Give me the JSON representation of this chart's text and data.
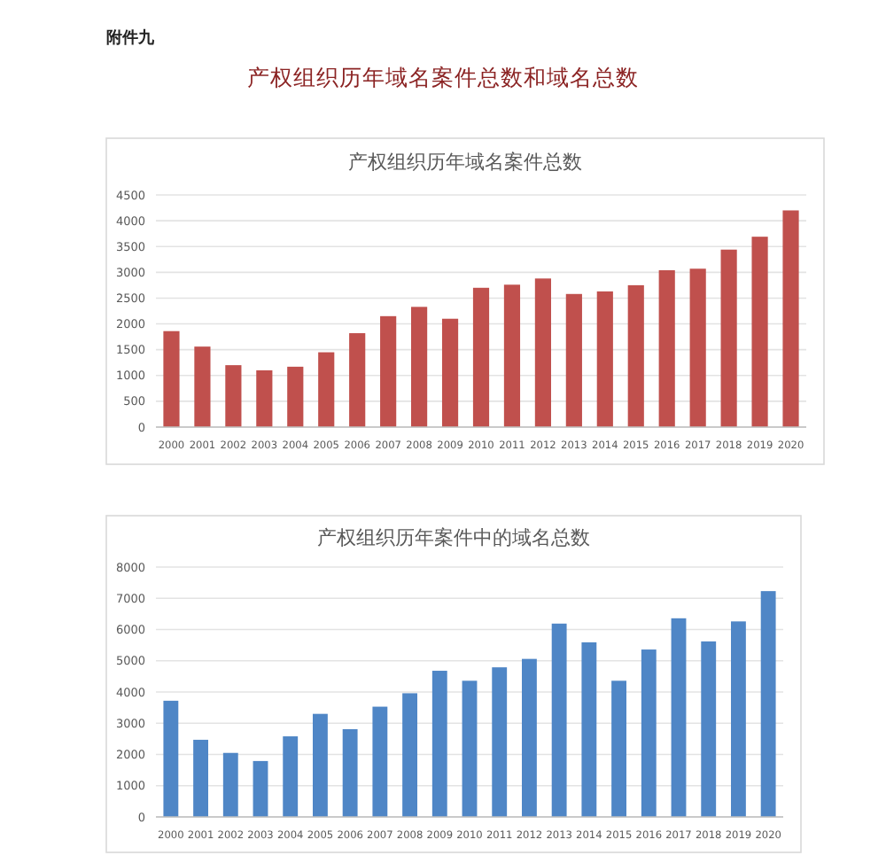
{
  "chart_data": [
    {
      "type": "bar",
      "annotations": [
        "附件九",
        "产权组织历年域名案件总数和域名总数"
      ],
      "title": "产权组织历年域名案件总数",
      "categories": [
        "2000",
        "2001",
        "2002",
        "2003",
        "2004",
        "2005",
        "2006",
        "2007",
        "2008",
        "2009",
        "2010",
        "2011",
        "2012",
        "2013",
        "2014",
        "2015",
        "2016",
        "2017",
        "2018",
        "2019",
        "2020"
      ],
      "values": [
        1860,
        1560,
        1200,
        1100,
        1170,
        1450,
        1820,
        2150,
        2330,
        2100,
        2700,
        2760,
        2880,
        2580,
        2630,
        2750,
        3040,
        3070,
        3440,
        3690,
        4200
      ],
      "color": "#c0504d",
      "ylim": [
        0,
        4500
      ],
      "yticks": [
        0,
        500,
        1000,
        1500,
        2000,
        2500,
        3000,
        3500,
        4000,
        4500
      ],
      "grid": "y"
    },
    {
      "type": "bar",
      "title": "产权组织历年案件中的域名总数",
      "categories": [
        "2000",
        "2001",
        "2002",
        "2003",
        "2004",
        "2005",
        "2006",
        "2007",
        "2008",
        "2009",
        "2010",
        "2011",
        "2012",
        "2013",
        "2014",
        "2015",
        "2016",
        "2017",
        "2018",
        "2019",
        "2020"
      ],
      "values": [
        3720,
        2470,
        2050,
        1790,
        2580,
        3300,
        2810,
        3530,
        3960,
        4680,
        4360,
        4790,
        5060,
        6190,
        5590,
        4360,
        5360,
        6360,
        5620,
        6260,
        7230
      ],
      "color": "#4f86c6",
      "ylim": [
        0,
        8000
      ],
      "yticks": [
        0,
        1000,
        2000,
        3000,
        4000,
        5000,
        6000,
        7000,
        8000
      ],
      "grid": "y"
    }
  ]
}
